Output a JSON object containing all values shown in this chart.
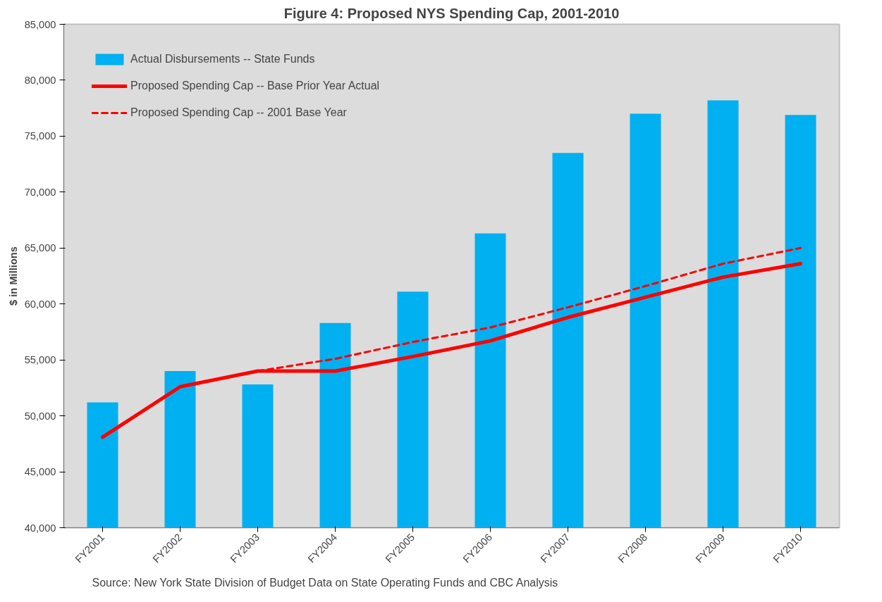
{
  "chart_data": {
    "type": "bar",
    "title": "Figure 4: Proposed NYS Spending Cap, 2001-2010",
    "ylabel": "$ in Millions",
    "categories": [
      "FY2001",
      "FY2002",
      "FY2003",
      "FY2004",
      "FY2005",
      "FY2006",
      "FY2007",
      "FY2008",
      "FY2009",
      "FY2010"
    ],
    "series": [
      {
        "name": "Actual Disbursements -- State Funds",
        "color": "#00b0f0",
        "values": [
          51200,
          54000,
          52800,
          58300,
          61100,
          66300,
          73500,
          77000,
          78200,
          76900
        ]
      },
      {
        "name": "Proposed Spending Cap -- Base Prior Year Actual",
        "type": "line",
        "line_style": "solid",
        "color": "#ff0000",
        "values": [
          48100,
          52600,
          54000,
          54000,
          55300,
          56700,
          58800,
          60600,
          62400,
          63600
        ]
      },
      {
        "name": "Proposed Spending Cap -- 2001 Base Year",
        "type": "line",
        "line_style": "dashed",
        "color": "#ff0000",
        "values": [
          null,
          null,
          54000,
          55100,
          56600,
          57900,
          59700,
          61600,
          63600,
          65000
        ]
      }
    ],
    "ylim": [
      40000,
      85000
    ],
    "yticks": [
      {
        "value": 40000,
        "label": "40,000"
      },
      {
        "value": 45000,
        "label": "45,000"
      },
      {
        "value": 50000,
        "label": "50,000"
      },
      {
        "value": 55000,
        "label": "55,000"
      },
      {
        "value": 60000,
        "label": "60,000"
      },
      {
        "value": 65000,
        "label": "65,000"
      },
      {
        "value": 70000,
        "label": "70,000"
      },
      {
        "value": 75000,
        "label": "75,000"
      },
      {
        "value": 80000,
        "label": "80,000"
      },
      {
        "value": 85000,
        "label": "85,000"
      }
    ],
    "grid": false,
    "legend": "top left",
    "marker": "none",
    "annotations": [
      "Source:   New York State Division of Budget Data on State Operating Funds and CBC Analysis"
    ]
  }
}
